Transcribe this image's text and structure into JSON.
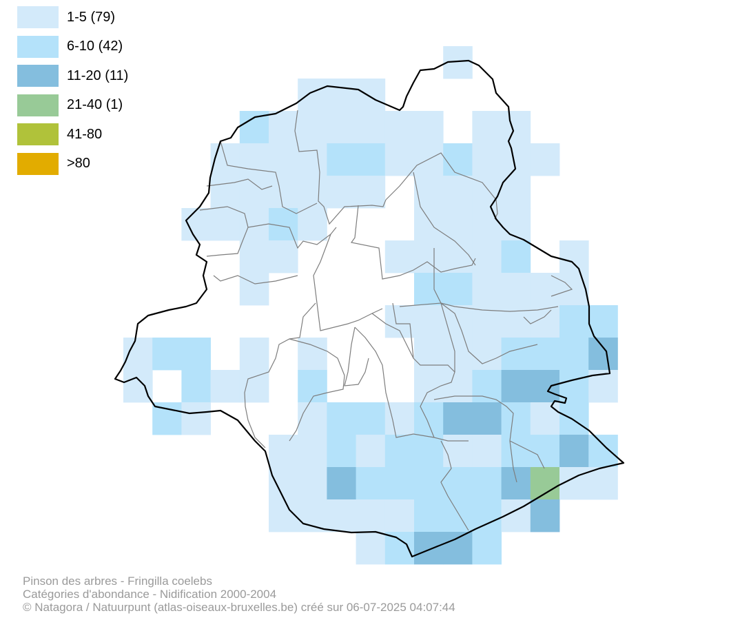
{
  "legend": {
    "items": [
      {
        "label": "1-5 (79)",
        "color": "#d3eafa"
      },
      {
        "label": "6-10 (42)",
        "color": "#b4e2fa"
      },
      {
        "label": "11-20 (11)",
        "color": "#84bede"
      },
      {
        "label": "21-40 (1)",
        "color": "#98ca97"
      },
      {
        "label": "41-80",
        "color": "#b0c23a"
      },
      {
        "label": ">80",
        "color": "#e2ac00"
      }
    ]
  },
  "caption": {
    "line1": "Pinson des arbres - Fringilla coelebs",
    "line2": "Catégories d'abondance - Nidification 2000-2004",
    "line3": "© Natagora / Natuurpunt (atlas-oiseaux-bruxelles.be) créé sur 06-07-2025 04:07:44"
  }
}
